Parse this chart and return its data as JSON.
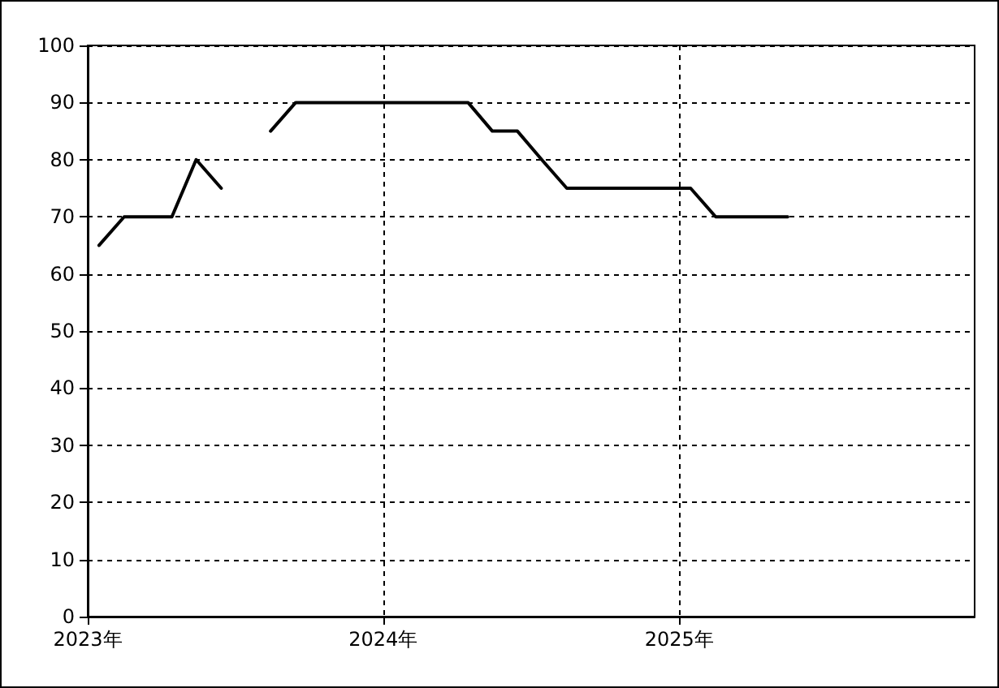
{
  "chart_data": {
    "type": "line",
    "x": [
      "2023-01-15",
      "2023-02-15",
      "2023-03-15",
      "2023-04-15",
      "2023-05-15",
      "2023-06-15",
      "2023-07-15",
      "2023-08-15",
      "2023-09-15",
      "2023-10-15",
      "2023-11-15",
      "2023-12-15",
      "2024-01-15",
      "2024-02-15",
      "2024-03-15",
      "2024-04-15",
      "2024-05-15",
      "2024-06-15",
      "2024-07-15",
      "2024-08-15",
      "2024-09-15",
      "2024-10-15",
      "2024-11-15",
      "2024-12-15",
      "2025-01-15",
      "2025-02-15",
      "2025-03-15",
      "2025-04-15",
      "2025-05-15"
    ],
    "series": [
      {
        "color": "#000000",
        "values": [
          65,
          70,
          70,
          70,
          80,
          75,
          null,
          85,
          90,
          90,
          90,
          90,
          90,
          90,
          90,
          90,
          85,
          85,
          80,
          75,
          75,
          75,
          75,
          75,
          75,
          70,
          70,
          70,
          70
        ]
      }
    ],
    "xlim": [
      "2023-01-01",
      "2026-01-01"
    ],
    "xticks": [
      {
        "value": "2023-01-01",
        "label": "2023年"
      },
      {
        "value": "2024-01-01",
        "label": "2024年"
      },
      {
        "value": "2025-01-01",
        "label": "2025年"
      }
    ],
    "ylim": [
      0,
      100
    ],
    "yticks": [
      0,
      10,
      20,
      30,
      40,
      50,
      60,
      70,
      80,
      90,
      100
    ],
    "grid": true,
    "marker": "none",
    "line_style": "solid"
  }
}
